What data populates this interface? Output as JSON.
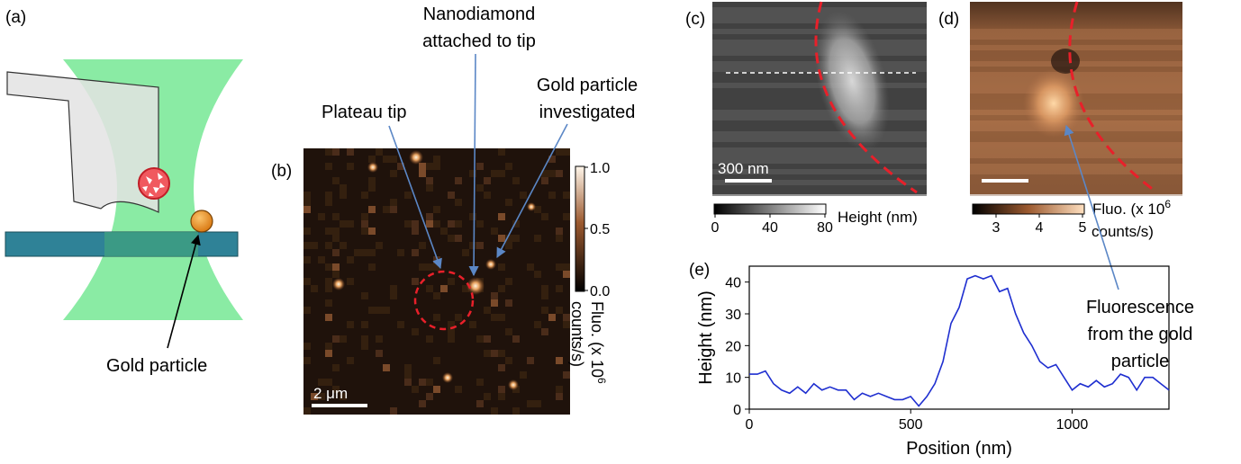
{
  "panels": {
    "a": {
      "label": "(a)",
      "annotation": "Gold particle",
      "colors": {
        "beam": "#7de99a",
        "substrate": "#2f8297",
        "tip": "#e2e2e2",
        "gold": "#e58a1a",
        "nanodiamond": "#e8323c"
      }
    },
    "b": {
      "label": "(b)",
      "annotations": {
        "plateau": "Plateau tip",
        "nanodiamond_line1": "Nanodiamond",
        "nanodiamond_line2": "attached to tip",
        "gold_line1": "Gold particle",
        "gold_line2": "investigated"
      },
      "scalebar": "2 μm",
      "colorbar": {
        "ticks": [
          "1.0",
          "0.5",
          "0.0"
        ],
        "label_line1": "Fluo. (x 10",
        "label_sup": "6",
        "label_line2": "counts/s)"
      }
    },
    "c": {
      "label": "(c)",
      "scalebar": "300 nm",
      "colorbar": {
        "ticks": [
          "0",
          "40",
          "80"
        ],
        "label": "Height (nm)"
      }
    },
    "d": {
      "label": "(d)",
      "colorbar": {
        "ticks": [
          "3",
          "4",
          "5"
        ],
        "label_line1": "Fluo. (x 10",
        "label_sup": "6",
        "label_line2": "counts/s)"
      },
      "annotation_line1": "Fluorescence",
      "annotation_line2": "from the gold",
      "annotation_line3": "particle"
    },
    "e": {
      "label": "(e)"
    }
  },
  "chart_data": {
    "type": "line",
    "xlabel": "Position (nm)",
    "ylabel": "Height (nm)",
    "xlim": [
      0,
      1300
    ],
    "ylim": [
      0,
      45
    ],
    "xticks": [
      0,
      500,
      1000
    ],
    "yticks": [
      0,
      10,
      20,
      30,
      40
    ],
    "line_color": "#1f2fd0",
    "series": [
      {
        "x": [
          0,
          25,
          50,
          75,
          100,
          125,
          150,
          175,
          200,
          225,
          250,
          275,
          300,
          325,
          350,
          375,
          400,
          425,
          450,
          475,
          500,
          525,
          550,
          575,
          600,
          625,
          650,
          675,
          700,
          725,
          750,
          775,
          800,
          825,
          850,
          875,
          900,
          925,
          950,
          975,
          1000,
          1025,
          1050,
          1075,
          1100,
          1125,
          1150,
          1175,
          1200,
          1225,
          1250,
          1275,
          1300
        ],
        "values": [
          11,
          11,
          12,
          8,
          6,
          5,
          7,
          5,
          8,
          6,
          7,
          6,
          6,
          3,
          5,
          4,
          5,
          4,
          3,
          3,
          4,
          1,
          4,
          8,
          15,
          27,
          32,
          41,
          42,
          41,
          42,
          37,
          38,
          30,
          24,
          20,
          15,
          13,
          14,
          10,
          6,
          8,
          7,
          9,
          7,
          8,
          11,
          10,
          6,
          10,
          10,
          8,
          6
        ]
      }
    ]
  }
}
